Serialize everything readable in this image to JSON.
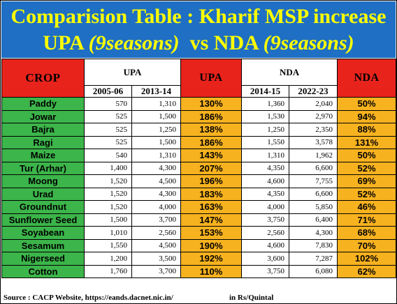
{
  "title": {
    "line1": "Comparision Table : Kharif MSP increase",
    "line2_a": "UPA ",
    "line2_b": "(9seasons)",
    "line2_c": "  vs NDA ",
    "line2_d": "(9seasons)"
  },
  "headers": {
    "crop": "CROP",
    "upa_group": "UPA",
    "upa_pct": "UPA",
    "nda_group": "NDA",
    "nda_pct": "NDA",
    "years": [
      "2005-06",
      "2013-14",
      "2014-15",
      "2022-23"
    ]
  },
  "rows": [
    {
      "crop": "Paddy",
      "upa_start": "570",
      "upa_end": "1,310",
      "upa_pct": "130%",
      "nda_start": "1,360",
      "nda_end": "2,040",
      "nda_pct": "50%"
    },
    {
      "crop": "Jowar",
      "upa_start": "525",
      "upa_end": "1,500",
      "upa_pct": "186%",
      "nda_start": "1,530",
      "nda_end": "2,970",
      "nda_pct": "94%"
    },
    {
      "crop": "Bajra",
      "upa_start": "525",
      "upa_end": "1,250",
      "upa_pct": "138%",
      "nda_start": "1,250",
      "nda_end": "2,350",
      "nda_pct": "88%"
    },
    {
      "crop": "Ragi",
      "upa_start": "525",
      "upa_end": "1,500",
      "upa_pct": "186%",
      "nda_start": "1,550",
      "nda_end": "3,578",
      "nda_pct": "131%"
    },
    {
      "crop": "Maize",
      "upa_start": "540",
      "upa_end": "1,310",
      "upa_pct": "143%",
      "nda_start": "1,310",
      "nda_end": "1,962",
      "nda_pct": "50%"
    },
    {
      "crop": "Tur (Arhar)",
      "upa_start": "1,400",
      "upa_end": "4,300",
      "upa_pct": "207%",
      "nda_start": "4,350",
      "nda_end": "6,600",
      "nda_pct": "52%"
    },
    {
      "crop": "Moong",
      "upa_start": "1,520",
      "upa_end": "4,500",
      "upa_pct": "196%",
      "nda_start": "4,600",
      "nda_end": "7,755",
      "nda_pct": "69%"
    },
    {
      "crop": "Urad",
      "upa_start": "1,520",
      "upa_end": "4,300",
      "upa_pct": "183%",
      "nda_start": "4,350",
      "nda_end": "6,600",
      "nda_pct": "52%"
    },
    {
      "crop": "Groundnut",
      "upa_start": "1,520",
      "upa_end": "4,000",
      "upa_pct": "163%",
      "nda_start": "4,000",
      "nda_end": "5,850",
      "nda_pct": "46%"
    },
    {
      "crop": "Sunflower Seed",
      "upa_start": "1,500",
      "upa_end": "3,700",
      "upa_pct": "147%",
      "nda_start": "3,750",
      "nda_end": "6,400",
      "nda_pct": "71%"
    },
    {
      "crop": "Soyabean",
      "upa_start": "1,010",
      "upa_end": "2,560",
      "upa_pct": "153%",
      "nda_start": "2,560",
      "nda_end": "4,300",
      "nda_pct": "68%"
    },
    {
      "crop": "Sesamum",
      "upa_start": "1,550",
      "upa_end": "4,500",
      "upa_pct": "190%",
      "nda_start": "4,600",
      "nda_end": "7,830",
      "nda_pct": "70%"
    },
    {
      "crop": "Nigerseed",
      "upa_start": "1,200",
      "upa_end": "3,500",
      "upa_pct": "192%",
      "nda_start": "3,600",
      "nda_end": "7,287",
      "nda_pct": "102%"
    },
    {
      "crop": "Cotton",
      "upa_start": "1,760",
      "upa_end": "3,700",
      "upa_pct": "110%",
      "nda_start": "3,750",
      "nda_end": "6,080",
      "nda_pct": "62%"
    }
  ],
  "footer": {
    "source": "Source : CACP Website, https://eands.dacnet.nic.in/",
    "unit": "in Rs/Quintal"
  },
  "colors": {
    "title_bg": "#1f6fc4",
    "title_text": "#ffff00",
    "header_red": "#e8231c",
    "crop_green": "#3cb54a",
    "pct_orange": "#f7b21f"
  }
}
